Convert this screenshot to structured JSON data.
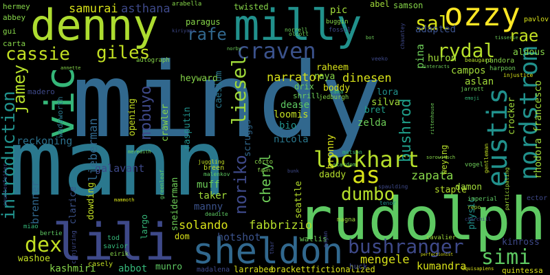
{
  "words": [
    {
      "text": "mindy",
      "color": "#31688e"
    },
    {
      "text": "mann",
      "color": "#2a788e"
    },
    {
      "text": "rudolph",
      "color": "#5ec962"
    },
    {
      "text": "denny",
      "color": "#addc30"
    },
    {
      "text": "milly",
      "color": "#21918c"
    },
    {
      "text": "ozzy",
      "color": "#fde725"
    },
    {
      "text": "sheldon",
      "color": "#31688e"
    },
    {
      "text": "lili",
      "color": "#3e4989"
    },
    {
      "text": "vic",
      "color": "#35b779"
    },
    {
      "text": "bushranger",
      "color": "#3e4989"
    },
    {
      "text": "nordstrom",
      "color": "#21918c"
    },
    {
      "text": "eustis",
      "color": "#21918c"
    },
    {
      "text": "lockhart",
      "color": "#b5de2b"
    },
    {
      "text": "dumbo",
      "color": "#b5de2b"
    },
    {
      "text": "as",
      "color": "#d8e219"
    },
    {
      "text": "simi",
      "color": "#5ec962"
    },
    {
      "text": "dex",
      "color": "#c2df23"
    },
    {
      "text": "cassie",
      "color": "#c2df23"
    },
    {
      "text": "giles",
      "color": "#c2df23"
    },
    {
      "text": "craven",
      "color": "#3b528b"
    },
    {
      "text": "rydal",
      "color": "#b5de2b"
    },
    {
      "text": "rae",
      "color": "#c2df23"
    },
    {
      "text": "sal",
      "color": "#d8e219"
    },
    {
      "text": "rafe",
      "color": "#31688e"
    },
    {
      "text": "samurai",
      "color": "#d8e219"
    },
    {
      "text": "asthana",
      "color": "#3e4989"
    },
    {
      "text": "jamey",
      "color": "#b5de2b"
    },
    {
      "text": "introduction",
      "color": "#21918c"
    },
    {
      "text": "liesel",
      "color": "#a0da39"
    },
    {
      "text": "nobuyo",
      "color": "#3e4989"
    },
    {
      "text": "noriko",
      "color": "#3e4989"
    },
    {
      "text": "lieberman",
      "color": "#31688e"
    },
    {
      "text": "narrator",
      "color": "#d8e219"
    },
    {
      "text": "dinesen",
      "color": "#d8e219"
    },
    {
      "text": "bushrod",
      "color": "#1f9e89"
    },
    {
      "text": "zapata",
      "color": "#86d549"
    },
    {
      "text": "cheryl",
      "color": "#6ece58"
    },
    {
      "text": "fabbrizio",
      "color": "#b5de2b"
    },
    {
      "text": "solando",
      "color": "#d8e219"
    },
    {
      "text": "mengele",
      "color": "#d8e219"
    },
    {
      "text": "hotshot",
      "color": "#3b528b"
    },
    {
      "text": "kumandra",
      "color": "#d8e219"
    },
    {
      "text": "washoe",
      "color": "#c2df23"
    },
    {
      "text": "abbot",
      "color": "#35b779"
    },
    {
      "text": "kashmiri",
      "color": "#86d549"
    },
    {
      "text": "brenner",
      "color": "#31688e"
    },
    {
      "text": "reckoning",
      "color": "#2c728e"
    },
    {
      "text": "galavant",
      "color": "#3e4989"
    },
    {
      "text": "muff",
      "color": "#6ece58"
    },
    {
      "text": "taker",
      "color": "#a0da39"
    },
    {
      "text": "manny",
      "color": "#3b528b"
    },
    {
      "text": "nicola",
      "color": "#2a788e"
    },
    {
      "text": "bio",
      "color": "#21918c"
    },
    {
      "text": "loomis",
      "color": "#c2df23"
    },
    {
      "text": "zelda",
      "color": "#6ece58"
    },
    {
      "text": "silva",
      "color": "#a0da39"
    },
    {
      "text": "dease",
      "color": "#5ec962"
    },
    {
      "text": "bret",
      "color": "#1f9e89"
    },
    {
      "text": "lora",
      "color": "#21918c"
    },
    {
      "text": "campos",
      "color": "#a0da39"
    },
    {
      "text": "aslan",
      "color": "#a0da39"
    },
    {
      "text": "huron",
      "color": "#a0da39"
    },
    {
      "text": "pina",
      "color": "#6ece58"
    },
    {
      "text": "adapted",
      "color": "#3b528b"
    },
    {
      "text": "aldous",
      "color": "#86d549"
    },
    {
      "text": "crocker",
      "color": "#a0da39"
    },
    {
      "text": "rhodora francesco",
      "color": "#a0da39"
    },
    {
      "text": "bronny",
      "color": "#d8e219"
    },
    {
      "text": "raheem",
      "color": "#d8e219"
    },
    {
      "text": "boddy",
      "color": "#d8e219"
    },
    {
      "text": "heyward",
      "color": "#86d549"
    },
    {
      "text": "rasputin",
      "color": "#21918c"
    },
    {
      "text": "crawler",
      "color": "#86d549"
    },
    {
      "text": "opening",
      "color": "#c2df23"
    },
    {
      "text": "caesium",
      "color": "#2a788e"
    },
    {
      "text": "scruggs",
      "color": "#31688e"
    },
    {
      "text": "raya",
      "color": "#86d549"
    },
    {
      "text": "drix",
      "color": "#6ece58"
    },
    {
      "text": "dowding",
      "color": "#c2df23"
    },
    {
      "text": "clarice",
      "color": "#3b528b"
    },
    {
      "text": "sneiderman",
      "color": "#6ece58"
    },
    {
      "text": "seattle",
      "color": "#b5de2b"
    },
    {
      "text": "daddy",
      "color": "#b5de2b"
    },
    {
      "text": "staple",
      "color": "#b5de2b"
    },
    {
      "text": "damon",
      "color": "#a0da39"
    },
    {
      "text": "physic",
      "color": "#21918c"
    },
    {
      "text": "weying",
      "color": "#b5de2b"
    },
    {
      "text": "kinross",
      "color": "#3e4989"
    },
    {
      "text": "largo",
      "color": "#35b779"
    },
    {
      "text": "dom",
      "color": "#d8e219"
    },
    {
      "text": "munro",
      "color": "#5ec962"
    },
    {
      "text": "madalena",
      "color": "#3e4989"
    },
    {
      "text": "larrabee",
      "color": "#d8e219"
    },
    {
      "text": "brackettfictionalized",
      "color": "#d8e219"
    },
    {
      "text": "quintessa",
      "color": "#d8e219"
    },
    {
      "text": "huck",
      "color": "#3e4989"
    },
    {
      "text": "casely",
      "color": "#c2df23"
    },
    {
      "text": "twisted",
      "color": "#86d549"
    },
    {
      "text": "pic",
      "color": "#a0da39"
    },
    {
      "text": "paragus",
      "color": "#86d549"
    },
    {
      "text": "abel",
      "color": "#a0da39"
    },
    {
      "text": "samson",
      "color": "#86d549"
    },
    {
      "text": "hermey",
      "color": "#86d549"
    },
    {
      "text": "abbey",
      "color": "#86d549"
    },
    {
      "text": "gui",
      "color": "#86d549"
    },
    {
      "text": "carta",
      "color": "#86d549"
    },
    {
      "text": "madero",
      "color": "#3e4989"
    },
    {
      "text": "wadsworth",
      "color": "#2a788e"
    },
    {
      "text": "breen",
      "color": "#c2df23"
    },
    {
      "text": "tod",
      "color": "#35b779"
    },
    {
      "text": "savior",
      "color": "#35b779"
    },
    {
      "text": "eirik",
      "color": "#86d549"
    },
    {
      "text": "bertie",
      "color": "#5ec962"
    },
    {
      "text": "miao",
      "color": "#35b779"
    },
    {
      "text": "wallis",
      "color": "#6ece58"
    },
    {
      "text": "magna",
      "color": "#a0da39"
    },
    {
      "text": "cavalier",
      "color": "#a0da39"
    },
    {
      "text": "jedburgh",
      "color": "#86d549"
    },
    {
      "text": "shrill",
      "color": "#6ece58"
    },
    {
      "text": "pandora",
      "color": "#86d549"
    },
    {
      "text": "harpoon",
      "color": "#6ece58"
    },
    {
      "text": "jarrett",
      "color": "#6ece58"
    },
    {
      "text": "imperial",
      "color": "#5ec962"
    },
    {
      "text": "repo",
      "color": "#a0da39"
    },
    {
      "text": "ector",
      "color": "#3e4989"
    },
    {
      "text": "vogel",
      "color": "#6ece58"
    },
    {
      "text": "pavlov",
      "color": "#d8e219"
    },
    {
      "text": "beaugard",
      "color": "#b5de2b"
    },
    {
      "text": "autograph",
      "color": "#86d549"
    },
    {
      "text": "norrell",
      "color": "#6ece58"
    },
    {
      "text": "buggin",
      "color": "#86d549"
    },
    {
      "text": "fossil",
      "color": "#3e4989"
    },
    {
      "text": "kiriyama",
      "color": "#3e4989"
    },
    {
      "text": "arabella",
      "color": "#86d549"
    },
    {
      "text": "norby",
      "color": "#6ece58"
    },
    {
      "text": "olcott",
      "color": "#6ece58"
    },
    {
      "text": "bot",
      "color": "#6ece58"
    },
    {
      "text": "gentleman",
      "color": "#c2df23"
    },
    {
      "text": "corto",
      "color": "#86d549"
    },
    {
      "text": "fawn",
      "color": "#86d549"
    },
    {
      "text": "stardom",
      "color": "#5ec962"
    },
    {
      "text": "matson",
      "color": "#35b779"
    },
    {
      "text": "lama",
      "color": "#35b779"
    },
    {
      "text": "emoji",
      "color": "#35b779"
    },
    {
      "text": "veeko",
      "color": "#3e4989"
    },
    {
      "text": "tisserie",
      "color": "#6ece58"
    },
    {
      "text": "injustice",
      "color": "#d8e219"
    },
    {
      "text": "sorowitsch",
      "color": "#86d549"
    },
    {
      "text": "bunk",
      "color": "#3e4989"
    },
    {
      "text": "tenor",
      "color": "#21918c"
    },
    {
      "text": "juggling",
      "color": "#c2df23"
    },
    {
      "text": "meredith",
      "color": "#6ece58"
    },
    {
      "text": "deadite",
      "color": "#5ec962"
    },
    {
      "text": "malenkov",
      "color": "#5ec962"
    },
    {
      "text": "mammoth",
      "color": "#d8e219"
    },
    {
      "text": "greenleaf",
      "color": "#5ec962"
    },
    {
      "text": "counterfeiter",
      "color": "#3e4989"
    },
    {
      "text": "annette",
      "color": "#86d549"
    },
    {
      "text": "interacts",
      "color": "#6ece58"
    },
    {
      "text": "perfectionist",
      "color": "#d8e219"
    },
    {
      "text": "equisapiens",
      "color": "#d8e219"
    },
    {
      "text": "participating",
      "color": "#a0da39"
    },
    {
      "text": "rittenhouse",
      "color": "#6ece58"
    },
    {
      "text": "spaulding",
      "color": "#3e4989"
    },
    {
      "text": "conjuring",
      "color": "#3e4989"
    },
    {
      "text": "thar",
      "color": "#3e4989"
    },
    {
      "text": "pagan",
      "color": "#3e4989"
    },
    {
      "text": "churchill",
      "color": "#3e4989"
    },
    {
      "text": "chauntey",
      "color": "#3e4989"
    }
  ]
}
